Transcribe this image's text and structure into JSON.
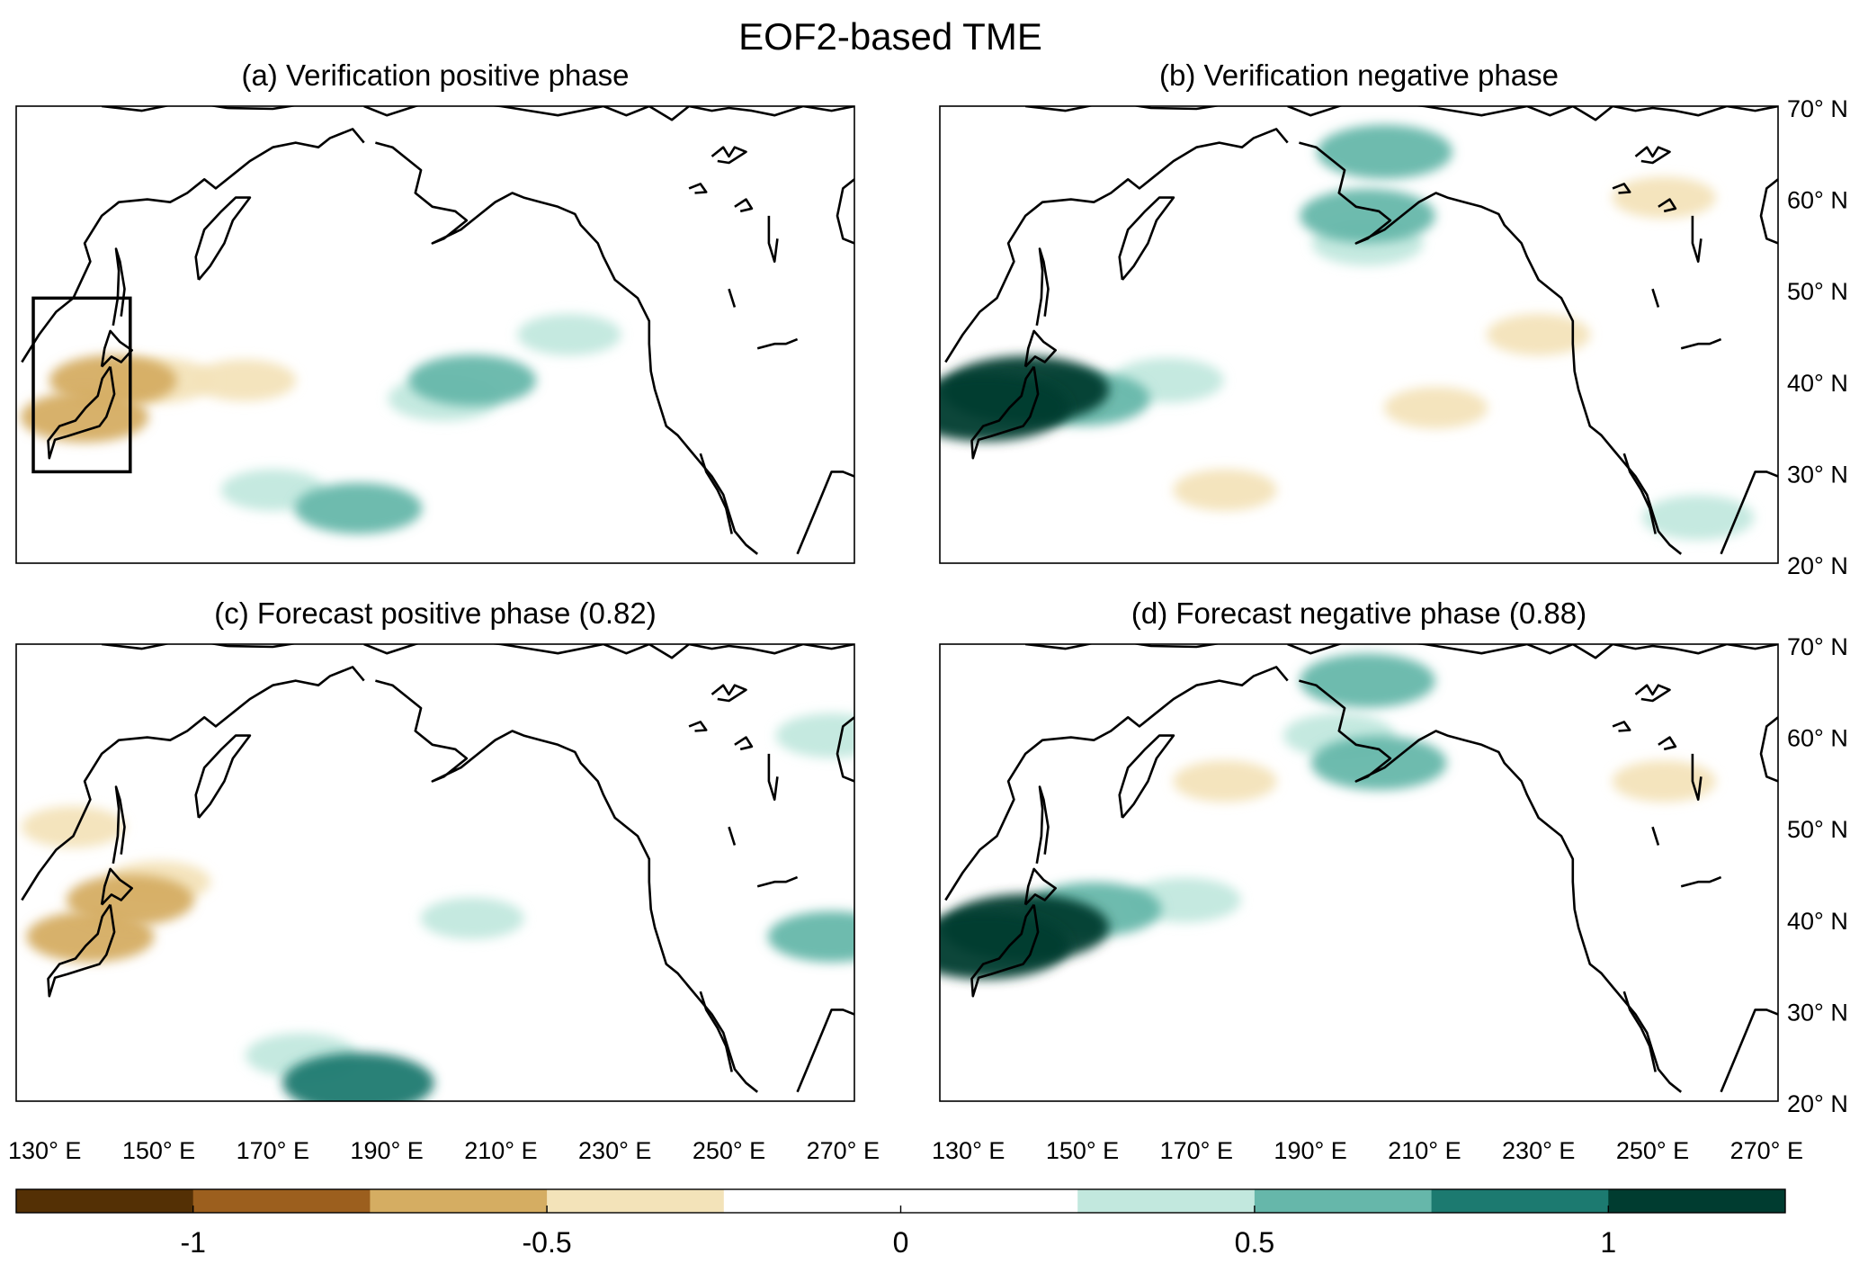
{
  "figure": {
    "title": "EOF2-based TME"
  },
  "chart_data": [
    {
      "type": "map",
      "panel": "a",
      "title": "(a) Verification positive phase",
      "region_box": {
        "lon": [
          128,
          145
        ],
        "lat": [
          30,
          49
        ]
      },
      "anomalies": [
        {
          "lon": 142,
          "lat": 40,
          "value": -0.6
        },
        {
          "lon": 137,
          "lat": 36,
          "value": -0.6
        },
        {
          "lon": 150,
          "lat": 40,
          "value": -0.4
        },
        {
          "lon": 165,
          "lat": 40,
          "value": -0.3
        },
        {
          "lon": 205,
          "lat": 40,
          "value": 0.6
        },
        {
          "lon": 200,
          "lat": 38,
          "value": 0.4
        },
        {
          "lon": 185,
          "lat": 26,
          "value": 0.6
        },
        {
          "lon": 170,
          "lat": 28,
          "value": 0.3
        },
        {
          "lon": 222,
          "lat": 45,
          "value": 0.3
        }
      ]
    },
    {
      "type": "map",
      "panel": "b",
      "title": "(b) Verification negative phase",
      "anomalies": [
        {
          "lon": 140,
          "lat": 39,
          "value": 1.1
        },
        {
          "lon": 133,
          "lat": 37,
          "value": 1.1
        },
        {
          "lon": 150,
          "lat": 38,
          "value": 0.7
        },
        {
          "lon": 165,
          "lat": 40,
          "value": 0.4
        },
        {
          "lon": 203,
          "lat": 65,
          "value": 0.7
        },
        {
          "lon": 200,
          "lat": 58,
          "value": 0.7
        },
        {
          "lon": 200,
          "lat": 55,
          "value": 0.4
        },
        {
          "lon": 212,
          "lat": 37,
          "value": -0.3
        },
        {
          "lon": 230,
          "lat": 45,
          "value": -0.3
        },
        {
          "lon": 175,
          "lat": 28,
          "value": -0.3
        },
        {
          "lon": 252,
          "lat": 60,
          "value": -0.3
        },
        {
          "lon": 258,
          "lat": 25,
          "value": 0.4
        }
      ]
    },
    {
      "type": "map",
      "panel": "c",
      "title": "(c) Forecast positive phase (0.82)",
      "anomalies": [
        {
          "lon": 138,
          "lat": 38,
          "value": -0.6
        },
        {
          "lon": 145,
          "lat": 42,
          "value": -0.6
        },
        {
          "lon": 150,
          "lat": 44,
          "value": -0.3
        },
        {
          "lon": 135,
          "lat": 50,
          "value": -0.3
        },
        {
          "lon": 185,
          "lat": 22,
          "value": 0.9
        },
        {
          "lon": 175,
          "lat": 25,
          "value": 0.4
        },
        {
          "lon": 205,
          "lat": 40,
          "value": 0.3
        },
        {
          "lon": 268,
          "lat": 38,
          "value": 0.6
        },
        {
          "lon": 268,
          "lat": 60,
          "value": 0.4
        }
      ]
    },
    {
      "type": "map",
      "panel": "d",
      "title": "(d) Forecast negative phase (0.88)",
      "anomalies": [
        {
          "lon": 140,
          "lat": 39,
          "value": 1.1
        },
        {
          "lon": 133,
          "lat": 37,
          "value": 1.1
        },
        {
          "lon": 152,
          "lat": 41,
          "value": 0.7
        },
        {
          "lon": 168,
          "lat": 42,
          "value": 0.4
        },
        {
          "lon": 200,
          "lat": 66,
          "value": 0.7
        },
        {
          "lon": 202,
          "lat": 57,
          "value": 0.7
        },
        {
          "lon": 195,
          "lat": 60,
          "value": 0.4
        },
        {
          "lon": 175,
          "lat": 55,
          "value": -0.3
        },
        {
          "lon": 252,
          "lat": 55,
          "value": -0.3
        }
      ]
    }
  ],
  "axes": {
    "lon_range": [
      125,
      272
    ],
    "lat_range": [
      20,
      70
    ],
    "lon_ticks": [
      "130° E",
      "150° E",
      "170° E",
      "190° E",
      "210° E",
      "230° E",
      "250° E",
      "270° E"
    ],
    "lon_tick_values": [
      130,
      150,
      170,
      190,
      210,
      230,
      250,
      270
    ],
    "lat_ticks": [
      "70° N",
      "60° N",
      "50° N",
      "40° N",
      "30° N",
      "20° N"
    ],
    "lat_tick_values": [
      70,
      60,
      50,
      40,
      30,
      20
    ]
  },
  "colorbar": {
    "range": [
      -1.25,
      1.25
    ],
    "colors": [
      "#543005",
      "#9c5f1e",
      "#d5ad62",
      "#f3e3b9",
      "#ffffff",
      "#ffffff",
      "#c2e8de",
      "#66b7aa",
      "#1c7a70",
      "#003c30"
    ],
    "tick_labels": [
      "-1",
      "-0.5",
      "0",
      "0.5",
      "1"
    ],
    "tick_values": [
      -1,
      -0.5,
      0,
      0.5,
      1
    ]
  }
}
